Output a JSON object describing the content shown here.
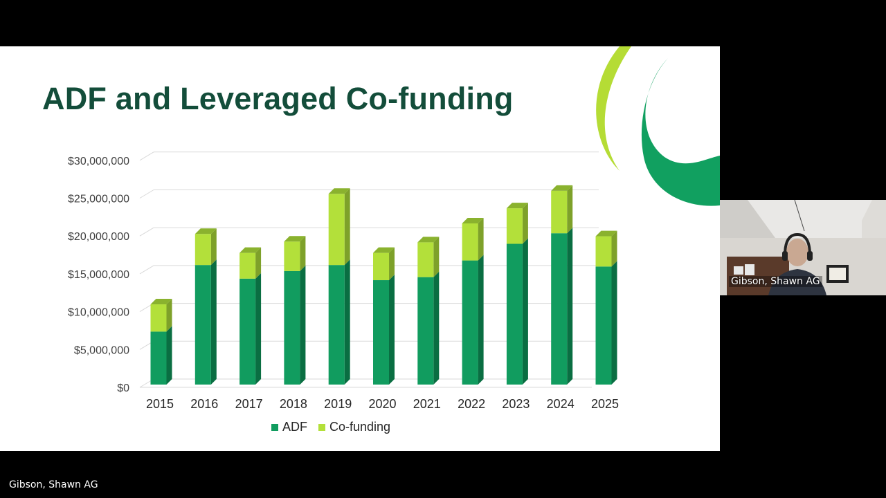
{
  "slide": {
    "title": "ADF and Leveraged Co-funding"
  },
  "colors": {
    "adf": "#119c5f",
    "adf_side": "#0a6e42",
    "adf_top": "#0f8a53",
    "cofunding": "#b3e03a",
    "cofunding_side": "#7ea12a",
    "cofunding_top": "#8ab22e",
    "title": "#134d3a",
    "swoosh_dark": "#11a060",
    "swoosh_light": "#b5dc35"
  },
  "legend": {
    "adf_label": "ADF",
    "cofunding_label": "Co-funding"
  },
  "y_ticks": [
    "$30,000,000",
    "$25,000,000",
    "$20,000,000",
    "$15,000,000",
    "$10,000,000",
    "$5,000,000",
    "$0"
  ],
  "chart_data": {
    "type": "bar",
    "stacked": true,
    "title": "ADF and Leveraged Co-funding",
    "xlabel": "",
    "ylabel": "",
    "ylim": [
      0,
      30000000
    ],
    "y_tick_step": 5000000,
    "grid": true,
    "legend_position": "bottom",
    "categories": [
      "2015",
      "2016",
      "2017",
      "2018",
      "2019",
      "2020",
      "2021",
      "2022",
      "2023",
      "2024",
      "2025"
    ],
    "series": [
      {
        "name": "ADF",
        "values": [
          7000000,
          15800000,
          14000000,
          15000000,
          15800000,
          13800000,
          14200000,
          16400000,
          18600000,
          20000000,
          15600000
        ]
      },
      {
        "name": "Co-funding",
        "values": [
          3600000,
          4100000,
          3400000,
          3900000,
          9400000,
          3600000,
          4600000,
          4900000,
          4700000,
          5600000,
          4000000
        ]
      }
    ]
  },
  "participants": {
    "webcam_name": "Gibson, Shawn AG",
    "speaker_name": "Gibson, Shawn AG"
  }
}
